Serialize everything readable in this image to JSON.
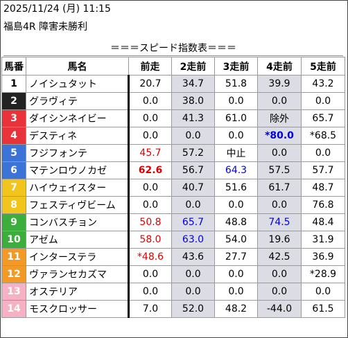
{
  "header": {
    "datetime": "2025/11/24 (月) 11:15",
    "race": "福島4R 障害未勝利"
  },
  "banner": "＝＝＝スピード指数表＝＝＝",
  "columns": [
    "馬番",
    "馬名",
    "前走",
    "2走前",
    "3走前",
    "4走前",
    "5走前"
  ],
  "frame_colors": [
    "#ffffff",
    "#222222",
    "#e8333b",
    "#e8333b",
    "#3b73d6",
    "#3b73d6",
    "#f2c51c",
    "#f2c51c",
    "#3cae3c",
    "#3cae3c",
    "#f39a26",
    "#f39a26",
    "#f6b2c4",
    "#f6b2c4"
  ],
  "rows": [
    {
      "num": "1",
      "name": "ノイシュタット",
      "vals": [
        "20.7",
        "34.7",
        "51.8",
        "39.9",
        "43.2"
      ]
    },
    {
      "num": "2",
      "name": "グラヴィテ",
      "vals": [
        "0.0",
        "38.0",
        "0.0",
        "0.0",
        "0.0"
      ]
    },
    {
      "num": "3",
      "name": "ダイシンネイビー",
      "vals": [
        "0.0",
        "41.3",
        "61.0",
        "除外",
        "65.7"
      ]
    },
    {
      "num": "4",
      "name": "デスティネ",
      "vals": [
        "0.0",
        "0.0",
        "0.0",
        "*80.0",
        "*68.5"
      ]
    },
    {
      "num": "5",
      "name": "フジフォンテ",
      "vals": [
        "45.7",
        "57.2",
        "中止",
        "0.0",
        "0.0"
      ]
    },
    {
      "num": "6",
      "name": "マテンロウノカゼ",
      "vals": [
        "62.6",
        "56.7",
        "64.3",
        "57.5",
        "57.7"
      ]
    },
    {
      "num": "7",
      "name": "ハイウェイスター",
      "vals": [
        "0.0",
        "40.7",
        "51.6",
        "61.7",
        "48.7"
      ]
    },
    {
      "num": "8",
      "name": "フェスティヴビーム",
      "vals": [
        "0.0",
        "0.0",
        "0.0",
        "0.0",
        "76.8"
      ]
    },
    {
      "num": "9",
      "name": "コンバスチョン",
      "vals": [
        "50.8",
        "65.7",
        "48.8",
        "74.5",
        "48.4"
      ]
    },
    {
      "num": "10",
      "name": "アゼム",
      "vals": [
        "58.0",
        "63.0",
        "54.0",
        "19.6",
        "31.9"
      ]
    },
    {
      "num": "11",
      "name": "インターステラ",
      "vals": [
        "*48.6",
        "43.6",
        "27.7",
        "42.5",
        "36.9"
      ]
    },
    {
      "num": "12",
      "name": "ヴァランセカズマ",
      "vals": [
        "0.0",
        "0.0",
        "0.0",
        "0.0",
        "*28.9"
      ]
    },
    {
      "num": "13",
      "name": "オステリア",
      "vals": [
        "0.0",
        "0.0",
        "0.0",
        "0.0",
        "0.0"
      ]
    },
    {
      "num": "14",
      "name": "モスクロッサー",
      "vals": [
        "7.0",
        "52.0",
        "48.2",
        "-44.0",
        "61.5"
      ]
    }
  ],
  "highlight_colors": {
    "red": "#e00000",
    "blue": "#0000e0"
  },
  "highlights": {
    "4-3": "blue bold",
    "5-0": "red",
    "6-0": "red bold",
    "6-2": "blue",
    "9-0": "red",
    "9-1": "blue",
    "9-3": "blue",
    "10-0": "red",
    "10-1": "blue",
    "11-0": "red"
  }
}
